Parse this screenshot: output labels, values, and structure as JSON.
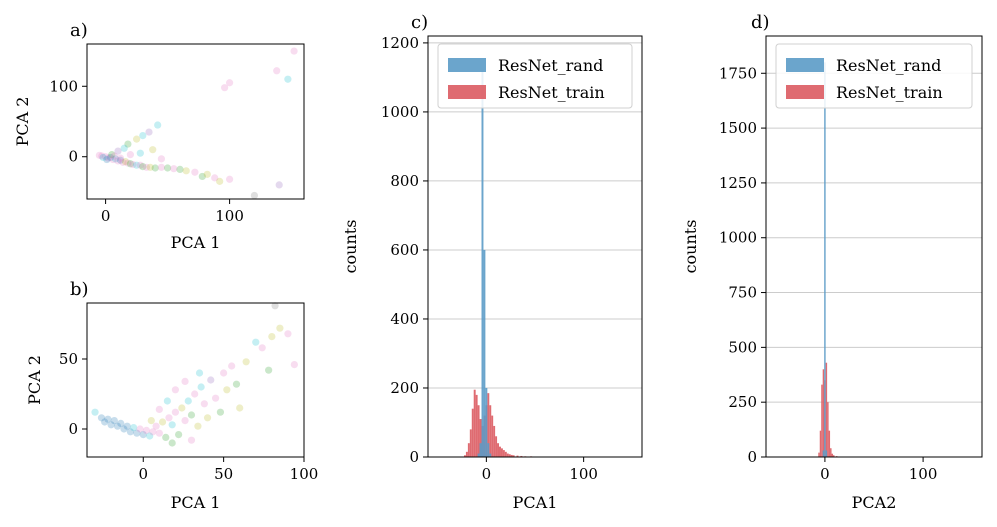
{
  "colors": {
    "rand": "#5b9bc7",
    "train": "#db5b62",
    "grid": "#cccccc",
    "scatter_palette": [
      "#1f77b4",
      "#17becf",
      "#e377c2",
      "#bcbd22",
      "#2ca02c",
      "#9467bd",
      "#8c564b",
      "#ff7f0e",
      "#7f7f7f",
      "#d62728"
    ]
  },
  "chart_data": [
    {
      "id": "a",
      "type": "scatter",
      "panel_label": "a)",
      "xlabel": "PCA 1",
      "ylabel": "PCA 2",
      "xlim": [
        -15,
        160
      ],
      "ylim": [
        -60,
        160
      ],
      "xticks": [
        0,
        100
      ],
      "yticks": [
        0,
        100
      ],
      "grid": false,
      "points": [
        {
          "x": -5,
          "y": 2,
          "c": 2
        },
        {
          "x": -3,
          "y": 1,
          "c": 2
        },
        {
          "x": 0,
          "y": 0,
          "c": 2
        },
        {
          "x": 2,
          "y": -2,
          "c": 2
        },
        {
          "x": 4,
          "y": -1,
          "c": 0
        },
        {
          "x": 6,
          "y": -4,
          "c": 2
        },
        {
          "x": 8,
          "y": -3,
          "c": 1
        },
        {
          "x": 10,
          "y": -6,
          "c": 2
        },
        {
          "x": 12,
          "y": -5,
          "c": 0
        },
        {
          "x": 14,
          "y": -8,
          "c": 2
        },
        {
          "x": 16,
          "y": -7,
          "c": 3
        },
        {
          "x": 18,
          "y": -9,
          "c": 2
        },
        {
          "x": 20,
          "y": -10,
          "c": 4
        },
        {
          "x": 22,
          "y": -11,
          "c": 2
        },
        {
          "x": 25,
          "y": -12,
          "c": 1
        },
        {
          "x": 28,
          "y": -12,
          "c": 2
        },
        {
          "x": 30,
          "y": -14,
          "c": 4
        },
        {
          "x": 33,
          "y": -15,
          "c": 2
        },
        {
          "x": 36,
          "y": -15,
          "c": 3
        },
        {
          "x": 40,
          "y": -16,
          "c": 4
        },
        {
          "x": 45,
          "y": -15,
          "c": 2
        },
        {
          "x": 50,
          "y": -16,
          "c": 4
        },
        {
          "x": 55,
          "y": -17,
          "c": 2
        },
        {
          "x": 60,
          "y": -18,
          "c": 4
        },
        {
          "x": 65,
          "y": -20,
          "c": 3
        },
        {
          "x": 72,
          "y": -22,
          "c": 2
        },
        {
          "x": 78,
          "y": -28,
          "c": 4
        },
        {
          "x": 82,
          "y": -25,
          "c": 3
        },
        {
          "x": 88,
          "y": -30,
          "c": 2
        },
        {
          "x": 92,
          "y": -35,
          "c": 3
        },
        {
          "x": 100,
          "y": -32,
          "c": 2
        },
        {
          "x": 120,
          "y": -55,
          "c": 8
        },
        {
          "x": 140,
          "y": -40,
          "c": 5
        },
        {
          "x": 138,
          "y": 122,
          "c": 2
        },
        {
          "x": 147,
          "y": 110,
          "c": 1
        },
        {
          "x": 152,
          "y": 150,
          "c": 2
        },
        {
          "x": 100,
          "y": 105,
          "c": 2
        },
        {
          "x": 96,
          "y": 98,
          "c": 2
        },
        {
          "x": 42,
          "y": 45,
          "c": 1
        },
        {
          "x": 35,
          "y": 35,
          "c": 5
        },
        {
          "x": 30,
          "y": 30,
          "c": 1
        },
        {
          "x": 25,
          "y": 25,
          "c": 3
        },
        {
          "x": 18,
          "y": 18,
          "c": 4
        },
        {
          "x": 15,
          "y": 12,
          "c": 1
        },
        {
          "x": 10,
          "y": 8,
          "c": 5
        },
        {
          "x": 38,
          "y": 10,
          "c": 3
        },
        {
          "x": 45,
          "y": -3,
          "c": 2
        },
        {
          "x": 28,
          "y": 5,
          "c": 1
        },
        {
          "x": 20,
          "y": 3,
          "c": 2
        },
        {
          "x": 5,
          "y": 3,
          "c": 4
        },
        {
          "x": 1,
          "y": -4,
          "c": 0
        },
        {
          "x": -2,
          "y": -1,
          "c": 1
        },
        {
          "x": 7,
          "y": 1,
          "c": 2
        },
        {
          "x": 12,
          "y": -2,
          "c": 2
        }
      ]
    },
    {
      "id": "b",
      "type": "scatter",
      "panel_label": "b)",
      "xlabel": "PCA 1",
      "ylabel": "PCA 2",
      "xlim": [
        -35,
        100
      ],
      "ylim": [
        -20,
        90
      ],
      "xticks": [
        0,
        50,
        100
      ],
      "yticks": [
        0,
        50
      ],
      "grid": false,
      "points": [
        {
          "x": -30,
          "y": 12,
          "c": 1
        },
        {
          "x": -26,
          "y": 8,
          "c": 0
        },
        {
          "x": -24,
          "y": 5,
          "c": 0
        },
        {
          "x": -22,
          "y": 7,
          "c": 0
        },
        {
          "x": -20,
          "y": 3,
          "c": 0
        },
        {
          "x": -18,
          "y": 6,
          "c": 0
        },
        {
          "x": -16,
          "y": 2,
          "c": 0
        },
        {
          "x": -14,
          "y": 4,
          "c": 0
        },
        {
          "x": -12,
          "y": 0,
          "c": 0
        },
        {
          "x": -10,
          "y": 2,
          "c": 0
        },
        {
          "x": -8,
          "y": -2,
          "c": 0
        },
        {
          "x": -6,
          "y": 1,
          "c": 1
        },
        {
          "x": -4,
          "y": -3,
          "c": 0
        },
        {
          "x": -2,
          "y": 0,
          "c": 2
        },
        {
          "x": 0,
          "y": -4,
          "c": 0
        },
        {
          "x": 2,
          "y": -1,
          "c": 2
        },
        {
          "x": 4,
          "y": -5,
          "c": 1
        },
        {
          "x": 6,
          "y": -2,
          "c": 2
        },
        {
          "x": 8,
          "y": 2,
          "c": 2
        },
        {
          "x": 10,
          "y": -3,
          "c": 2
        },
        {
          "x": 12,
          "y": 5,
          "c": 3
        },
        {
          "x": 14,
          "y": -6,
          "c": 4
        },
        {
          "x": 16,
          "y": 8,
          "c": 2
        },
        {
          "x": 18,
          "y": 3,
          "c": 1
        },
        {
          "x": 20,
          "y": 12,
          "c": 2
        },
        {
          "x": 22,
          "y": -4,
          "c": 4
        },
        {
          "x": 24,
          "y": 15,
          "c": 3
        },
        {
          "x": 26,
          "y": 6,
          "c": 2
        },
        {
          "x": 28,
          "y": 20,
          "c": 1
        },
        {
          "x": 30,
          "y": 10,
          "c": 4
        },
        {
          "x": 32,
          "y": 25,
          "c": 2
        },
        {
          "x": 34,
          "y": 2,
          "c": 3
        },
        {
          "x": 36,
          "y": 30,
          "c": 1
        },
        {
          "x": 38,
          "y": 18,
          "c": 2
        },
        {
          "x": 40,
          "y": 8,
          "c": 3
        },
        {
          "x": 42,
          "y": 35,
          "c": 5
        },
        {
          "x": 45,
          "y": 22,
          "c": 2
        },
        {
          "x": 48,
          "y": 12,
          "c": 4
        },
        {
          "x": 50,
          "y": 40,
          "c": 2
        },
        {
          "x": 52,
          "y": 28,
          "c": 3
        },
        {
          "x": 55,
          "y": 45,
          "c": 2
        },
        {
          "x": 58,
          "y": 32,
          "c": 4
        },
        {
          "x": 60,
          "y": 15,
          "c": 3
        },
        {
          "x": 64,
          "y": 48,
          "c": 3
        },
        {
          "x": 70,
          "y": 62,
          "c": 1
        },
        {
          "x": 74,
          "y": 58,
          "c": 2
        },
        {
          "x": 78,
          "y": 42,
          "c": 4
        },
        {
          "x": 80,
          "y": 66,
          "c": 3
        },
        {
          "x": 82,
          "y": 88,
          "c": 8
        },
        {
          "x": 85,
          "y": 72,
          "c": 3
        },
        {
          "x": 90,
          "y": 68,
          "c": 2
        },
        {
          "x": 94,
          "y": 46,
          "c": 2
        },
        {
          "x": 20,
          "y": 28,
          "c": 2
        },
        {
          "x": 26,
          "y": 34,
          "c": 2
        },
        {
          "x": 15,
          "y": 20,
          "c": 1
        },
        {
          "x": 35,
          "y": 40,
          "c": 1
        },
        {
          "x": 10,
          "y": 14,
          "c": 2
        },
        {
          "x": 5,
          "y": 6,
          "c": 3
        },
        {
          "x": 18,
          "y": -10,
          "c": 4
        },
        {
          "x": 30,
          "y": -8,
          "c": 2
        }
      ]
    },
    {
      "id": "c",
      "type": "bar",
      "panel_label": "c)",
      "xlabel": "PCA1",
      "ylabel": "counts",
      "xlim": [
        -60,
        160
      ],
      "ylim": [
        0,
        1220
      ],
      "xticks": [
        0,
        100
      ],
      "yticks": [
        0,
        200,
        400,
        600,
        800,
        1000,
        1200
      ],
      "grid": true,
      "legend_position": "top-right",
      "bin_width": 2,
      "series": [
        {
          "name": "ResNet_rand",
          "color_key": "rand",
          "bins": [
            {
              "x": -8,
              "value": 10
            },
            {
              "x": -6,
              "value": 40
            },
            {
              "x": -4,
              "value": 1120
            },
            {
              "x": -2,
              "value": 600
            },
            {
              "x": 0,
              "value": 200
            },
            {
              "x": 2,
              "value": 40
            },
            {
              "x": 4,
              "value": 10
            }
          ]
        },
        {
          "name": "ResNet_train",
          "color_key": "train",
          "bins": [
            {
              "x": -22,
              "value": 5
            },
            {
              "x": -20,
              "value": 15
            },
            {
              "x": -18,
              "value": 40
            },
            {
              "x": -16,
              "value": 80
            },
            {
              "x": -14,
              "value": 140
            },
            {
              "x": -12,
              "value": 195
            },
            {
              "x": -10,
              "value": 180
            },
            {
              "x": -8,
              "value": 150
            },
            {
              "x": -6,
              "value": 110
            },
            {
              "x": -4,
              "value": 90
            },
            {
              "x": -2,
              "value": 120
            },
            {
              "x": 0,
              "value": 150
            },
            {
              "x": 2,
              "value": 185
            },
            {
              "x": 4,
              "value": 150
            },
            {
              "x": 6,
              "value": 120
            },
            {
              "x": 8,
              "value": 90
            },
            {
              "x": 10,
              "value": 60
            },
            {
              "x": 12,
              "value": 40
            },
            {
              "x": 14,
              "value": 30
            },
            {
              "x": 16,
              "value": 25
            },
            {
              "x": 18,
              "value": 20
            },
            {
              "x": 20,
              "value": 15
            },
            {
              "x": 22,
              "value": 10
            },
            {
              "x": 24,
              "value": 8
            },
            {
              "x": 26,
              "value": 6
            },
            {
              "x": 28,
              "value": 5
            },
            {
              "x": 32,
              "value": 4
            },
            {
              "x": 36,
              "value": 3
            },
            {
              "x": 40,
              "value": 2
            },
            {
              "x": 46,
              "value": 2
            },
            {
              "x": 54,
              "value": 1
            },
            {
              "x": 62,
              "value": 1
            },
            {
              "x": 72,
              "value": 1
            },
            {
              "x": 84,
              "value": 1
            },
            {
              "x": 100,
              "value": 1
            }
          ]
        }
      ]
    },
    {
      "id": "d",
      "type": "bar",
      "panel_label": "d)",
      "xlabel": "PCA2",
      "ylabel": "counts",
      "xlim": [
        -60,
        160
      ],
      "ylim": [
        0,
        1920
      ],
      "xticks": [
        0,
        100
      ],
      "yticks": [
        0,
        250,
        500,
        750,
        1000,
        1250,
        1500,
        1750
      ],
      "grid": true,
      "legend_position": "top-right",
      "bin_width": 1.5,
      "series": [
        {
          "name": "ResNet_rand",
          "color_key": "rand",
          "bins": [
            {
              "x": -1.5,
              "value": 30
            },
            {
              "x": 0,
              "value": 1800
            },
            {
              "x": 1.5,
              "value": 30
            }
          ]
        },
        {
          "name": "ResNet_train",
          "color_key": "train",
          "bins": [
            {
              "x": -6,
              "value": 20
            },
            {
              "x": -4.5,
              "value": 120
            },
            {
              "x": -3,
              "value": 330
            },
            {
              "x": -1.5,
              "value": 400
            },
            {
              "x": 0,
              "value": 350
            },
            {
              "x": 1.5,
              "value": 430
            },
            {
              "x": 3,
              "value": 250
            },
            {
              "x": 4.5,
              "value": 120
            },
            {
              "x": 6,
              "value": 40
            },
            {
              "x": 7.5,
              "value": 15
            },
            {
              "x": 9,
              "value": 8
            },
            {
              "x": 12,
              "value": 4
            },
            {
              "x": 16,
              "value": 2
            }
          ]
        }
      ]
    }
  ]
}
